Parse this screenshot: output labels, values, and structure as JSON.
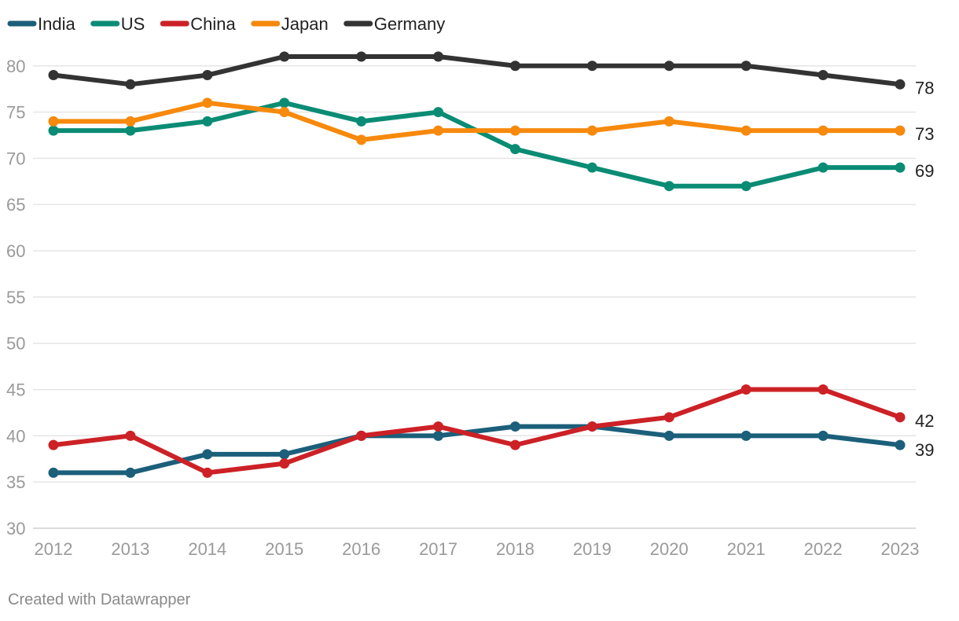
{
  "chart_data": {
    "type": "line",
    "title": "",
    "xlabel": "",
    "ylabel": "",
    "ylim": [
      30,
      80
    ],
    "y_ticks": [
      "30",
      "35",
      "40",
      "45",
      "50",
      "55",
      "60",
      "65",
      "70",
      "75",
      "80"
    ],
    "x": [
      "2012",
      "2013",
      "2014",
      "2015",
      "2016",
      "2017",
      "2018",
      "2019",
      "2020",
      "2021",
      "2022",
      "2023"
    ],
    "grid": true,
    "legend_position": "top-left",
    "series": [
      {
        "name": "India",
        "color": "#1b5f7a",
        "values": [
          36,
          36,
          38,
          38,
          40,
          40,
          41,
          41,
          40,
          40,
          40,
          39
        ],
        "end_label": "39"
      },
      {
        "name": "US",
        "color": "#0a8c74",
        "values": [
          73,
          73,
          74,
          76,
          74,
          75,
          71,
          69,
          67,
          67,
          69,
          69
        ],
        "end_label": "69"
      },
      {
        "name": "China",
        "color": "#cc2126",
        "values": [
          39,
          40,
          36,
          37,
          40,
          41,
          39,
          41,
          42,
          45,
          45,
          42
        ],
        "end_label": "42"
      },
      {
        "name": "Japan",
        "color": "#f7890c",
        "values": [
          74,
          74,
          76,
          75,
          72,
          73,
          73,
          73,
          74,
          73,
          73,
          73
        ],
        "end_label": "73"
      },
      {
        "name": "Germany",
        "color": "#333333",
        "values": [
          79,
          78,
          79,
          81,
          81,
          81,
          80,
          80,
          80,
          80,
          79,
          78
        ],
        "end_label": "78"
      }
    ],
    "draw_order": [
      "Germany",
      "US",
      "Japan",
      "India",
      "China"
    ]
  },
  "credit": "Created with Datawrapper"
}
